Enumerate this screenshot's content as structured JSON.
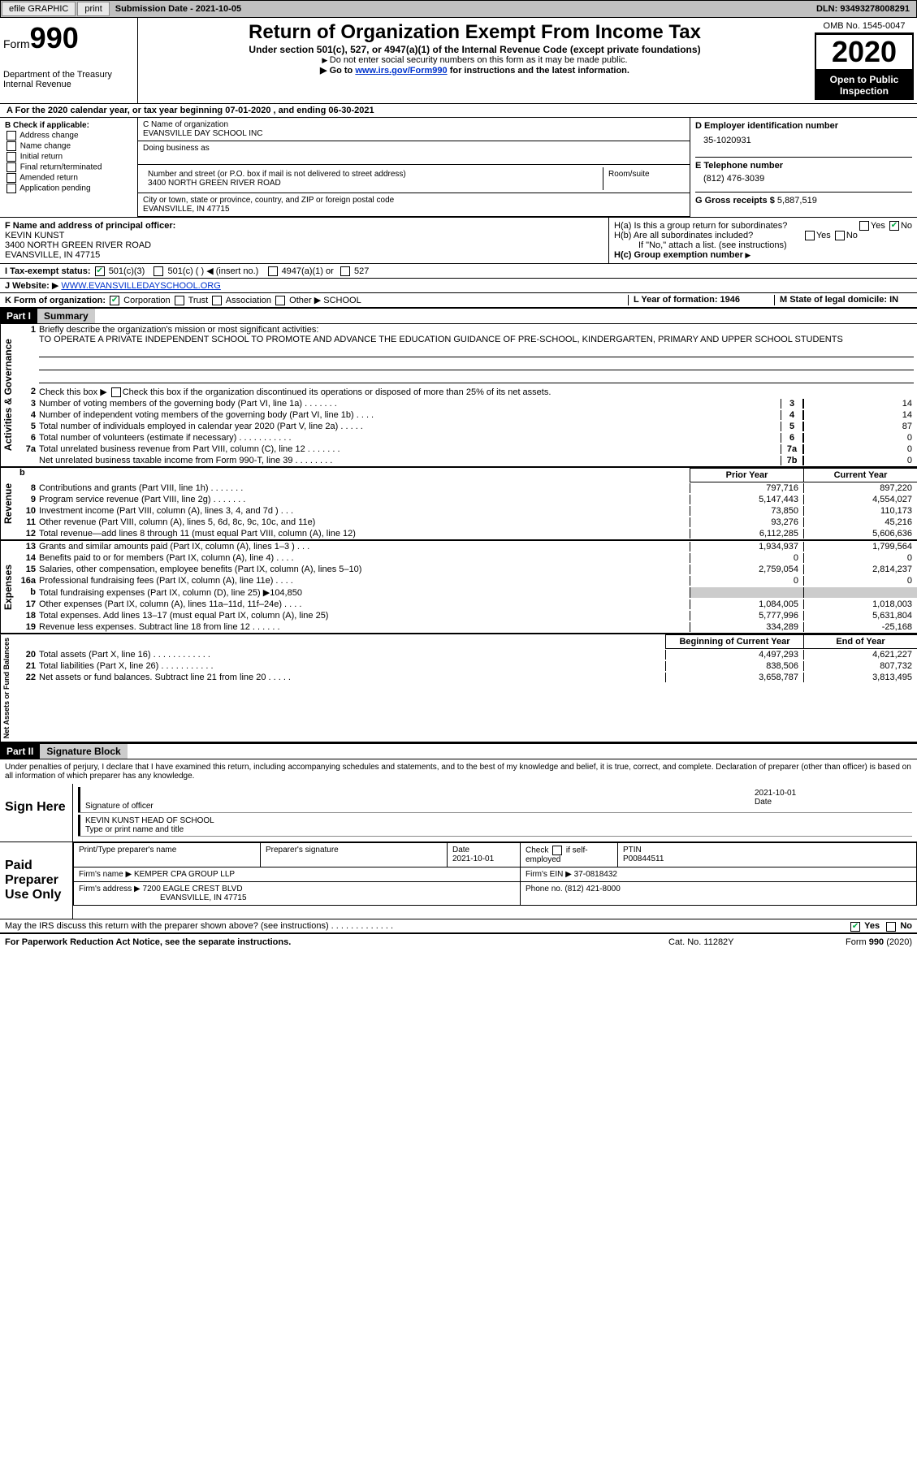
{
  "topbar": {
    "efile": "efile GRAPHIC",
    "print": "print",
    "sub_label": "Submission Date - ",
    "sub_date": "2021-10-05",
    "dln_label": "DLN: ",
    "dln": "93493278008291"
  },
  "header": {
    "form_prefix": "Form",
    "form_no": "990",
    "dept1": "Department of the Treasury",
    "dept2": "Internal Revenue",
    "title": "Return of Organization Exempt From Income Tax",
    "subtitle": "Under section 501(c), 527, or 4947(a)(1) of the Internal Revenue Code (except private foundations)",
    "note1": "Do not enter social security numbers on this form as it may be made public.",
    "note2_prefix": "Go to ",
    "note2_link": "www.irs.gov/Form990",
    "note2_suffix": " for instructions and the latest information.",
    "omb": "OMB No. 1545-0047",
    "year": "2020",
    "opi": "Open to Public Inspection"
  },
  "row_a": "For the 2020 calendar year, or tax year beginning 07-01-2020    , and ending 06-30-2021",
  "col_b": {
    "hdr": "B Check if applicable:",
    "items": [
      "Address change",
      "Name change",
      "Initial return",
      "Final return/terminated",
      "Amended return",
      "Application pending"
    ]
  },
  "col_c": {
    "name_lbl": "C Name of organization",
    "name": "EVANSVILLE DAY SCHOOL INC",
    "dba_lbl": "Doing business as",
    "dba": "",
    "addr_lbl": "Number and street (or P.O. box if mail is not delivered to street address)",
    "room_lbl": "Room/suite",
    "addr": "3400 NORTH GREEN RIVER ROAD",
    "city_lbl": "City or town, state or province, country, and ZIP or foreign postal code",
    "city": "EVANSVILLE, IN  47715"
  },
  "col_d": {
    "ein_lbl": "D Employer identification number",
    "ein": "35-1020931",
    "tel_lbl": "E Telephone number",
    "tel": "(812) 476-3039",
    "gross_lbl": "G Gross receipts $ ",
    "gross": "5,887,519"
  },
  "f": {
    "lbl": "F Name and address of principal officer:",
    "name": "KEVIN KUNST",
    "addr1": "3400 NORTH GREEN RIVER ROAD",
    "addr2": "EVANSVILLE, IN  47715"
  },
  "h": {
    "ha": "H(a)  Is this a group return for subordinates?",
    "hb": "H(b)  Are all subordinates included?",
    "hb_note": "If \"No,\" attach a list. (see instructions)",
    "hc": "H(c)  Group exemption number",
    "yes": "Yes",
    "no": "No"
  },
  "i": {
    "lbl": "I    Tax-exempt status:",
    "o1": "501(c)(3)",
    "o2": "501(c) (   )",
    "o2_note": "(insert no.)",
    "o3": "4947(a)(1) or",
    "o4": "527"
  },
  "j": {
    "lbl": "J    Website:",
    "val": "WWW.EVANSVILLEDAYSCHOOL.ORG"
  },
  "k": {
    "lbl": "K Form of organization:",
    "o1": "Corporation",
    "o2": "Trust",
    "o3": "Association",
    "o4": "Other",
    "other_val": "SCHOOL",
    "l": "L Year of formation: 1946",
    "m": "M State of legal domicile: IN"
  },
  "part1": {
    "tag": "Part I",
    "title": "Summary"
  },
  "mission": {
    "lbl": "Briefly describe the organization's mission or most significant activities:",
    "text": "TO OPERATE A PRIVATE INDEPENDENT SCHOOL TO PROMOTE AND ADVANCE THE EDUCATION GUIDANCE OF PRE-SCHOOL, KINDERGARTEN, PRIMARY AND UPPER SCHOOL STUDENTS"
  },
  "line2": "Check this box           if the organization discontinued its operations or disposed of more than 25% of its net assets.",
  "gov_lines": [
    {
      "n": "3",
      "t": "Number of voting members of the governing body (Part VI, line 1a)   .    .    .    .    .    .    .",
      "c": "3",
      "v": "14"
    },
    {
      "n": "4",
      "t": "Number of independent voting members of the governing body (Part VI, line 1b)   .    .    .    .",
      "c": "4",
      "v": "14"
    },
    {
      "n": "5",
      "t": "Total number of individuals employed in calendar year 2020 (Part V, line 2a)   .    .    .    .    .",
      "c": "5",
      "v": "87"
    },
    {
      "n": "6",
      "t": "Total number of volunteers (estimate if necessary)   .    .    .    .    .    .    .    .    .    .    .",
      "c": "6",
      "v": "0"
    },
    {
      "n": "7a",
      "t": "Total unrelated business revenue from Part VIII, column (C), line 12   .    .    .    .    .    .    .",
      "c": "7a",
      "v": "0"
    },
    {
      "n": "",
      "t": "Net unrelated business taxable income from Form 990-T, line 39   .    .    .    .    .    .    .    .",
      "c": "7b",
      "v": "0"
    }
  ],
  "col_hdr": {
    "prior": "Prior Year",
    "current": "Current Year",
    "begin": "Beginning of Current Year",
    "end": "End of Year"
  },
  "rev_lines": [
    {
      "n": "8",
      "t": "Contributions and grants (Part VIII, line 1h)   .    .    .    .    .    .    .",
      "p": "797,716",
      "c": "897,220"
    },
    {
      "n": "9",
      "t": "Program service revenue (Part VIII, line 2g)   .    .    .    .    .    .    .",
      "p": "5,147,443",
      "c": "4,554,027"
    },
    {
      "n": "10",
      "t": "Investment income (Part VIII, column (A), lines 3, 4, and 7d )   .    .    .",
      "p": "73,850",
      "c": "110,173"
    },
    {
      "n": "11",
      "t": "Other revenue (Part VIII, column (A), lines 5, 6d, 8c, 9c, 10c, and 11e)",
      "p": "93,276",
      "c": "45,216"
    },
    {
      "n": "12",
      "t": "Total revenue—add lines 8 through 11 (must equal Part VIII, column (A), line 12)",
      "p": "6,112,285",
      "c": "5,606,636"
    }
  ],
  "exp_lines": [
    {
      "n": "13",
      "t": "Grants and similar amounts paid (Part IX, column (A), lines 1–3 )   .    .    .",
      "p": "1,934,937",
      "c": "1,799,564"
    },
    {
      "n": "14",
      "t": "Benefits paid to or for members (Part IX, column (A), line 4)   .    .    .    .",
      "p": "0",
      "c": "0"
    },
    {
      "n": "15",
      "t": "Salaries, other compensation, employee benefits (Part IX, column (A), lines 5–10)",
      "p": "2,759,054",
      "c": "2,814,237"
    },
    {
      "n": "16a",
      "t": "Professional fundraising fees (Part IX, column (A), line 11e)   .    .    .    .",
      "p": "0",
      "c": "0"
    },
    {
      "n": "b",
      "t": "Total fundraising expenses (Part IX, column (D), line 25) ▶104,850",
      "p": "",
      "c": "",
      "shade": true
    },
    {
      "n": "17",
      "t": "Other expenses (Part IX, column (A), lines 11a–11d, 11f–24e)   .    .    .    .",
      "p": "1,084,005",
      "c": "1,018,003"
    },
    {
      "n": "18",
      "t": "Total expenses. Add lines 13–17 (must equal Part IX, column (A), line 25)",
      "p": "5,777,996",
      "c": "5,631,804"
    },
    {
      "n": "19",
      "t": "Revenue less expenses. Subtract line 18 from line 12   .    .    .    .    .    .",
      "p": "334,289",
      "c": "-25,168"
    }
  ],
  "na_lines": [
    {
      "n": "20",
      "t": "Total assets (Part X, line 16)   .    .    .    .    .    .    .    .    .    .    .    .",
      "p": "4,497,293",
      "c": "4,621,227"
    },
    {
      "n": "21",
      "t": "Total liabilities (Part X, line 26)   .    .    .    .    .    .    .    .    .    .    .",
      "p": "838,506",
      "c": "807,732"
    },
    {
      "n": "22",
      "t": "Net assets or fund balances. Subtract line 21 from line 20   .    .    .    .    .",
      "p": "3,658,787",
      "c": "3,813,495"
    }
  ],
  "side_labels": {
    "gov": "Activities & Governance",
    "rev": "Revenue",
    "exp": "Expenses",
    "na": "Net Assets or Fund Balances"
  },
  "part2": {
    "tag": "Part II",
    "title": "Signature Block"
  },
  "sig_decl": "Under penalties of perjury, I declare that I have examined this return, including accompanying schedules and statements, and to the best of my knowledge and belief, it is true, correct, and complete. Declaration of preparer (other than officer) is based on all information of which preparer has any knowledge.",
  "sign": {
    "here": "Sign Here",
    "sig_lbl": "Signature of officer",
    "date_lbl": "Date",
    "date": "2021-10-01",
    "name": "KEVIN KUNST  HEAD OF SCHOOL",
    "name_lbl": "Type or print name and title"
  },
  "paid": {
    "title": "Paid Preparer Use Only",
    "h1": "Print/Type preparer's name",
    "h2": "Preparer's signature",
    "h3": "Date",
    "h3v": "2021-10-01",
    "h4": "Check        if self-employed",
    "h5": "PTIN",
    "h5v": "P00844511",
    "firm_lbl": "Firm's name    ",
    "firm": "KEMPER CPA GROUP LLP",
    "ein_lbl": "Firm's EIN ",
    "ein": "37-0818432",
    "addr_lbl": "Firm's address ",
    "addr1": "7200 EAGLE CREST BLVD",
    "addr2": "EVANSVILLE, IN  47715",
    "phone_lbl": "Phone no. ",
    "phone": "(812) 421-8000"
  },
  "may_irs": "May the IRS discuss this return with the preparer shown above? (see instructions)   .    .    .    .    .    .    .    .    .    .    .    .    .",
  "footer": {
    "l": "For Paperwork Reduction Act Notice, see the separate instructions.",
    "m": "Cat. No. 11282Y",
    "r": "Form 990 (2020)"
  }
}
